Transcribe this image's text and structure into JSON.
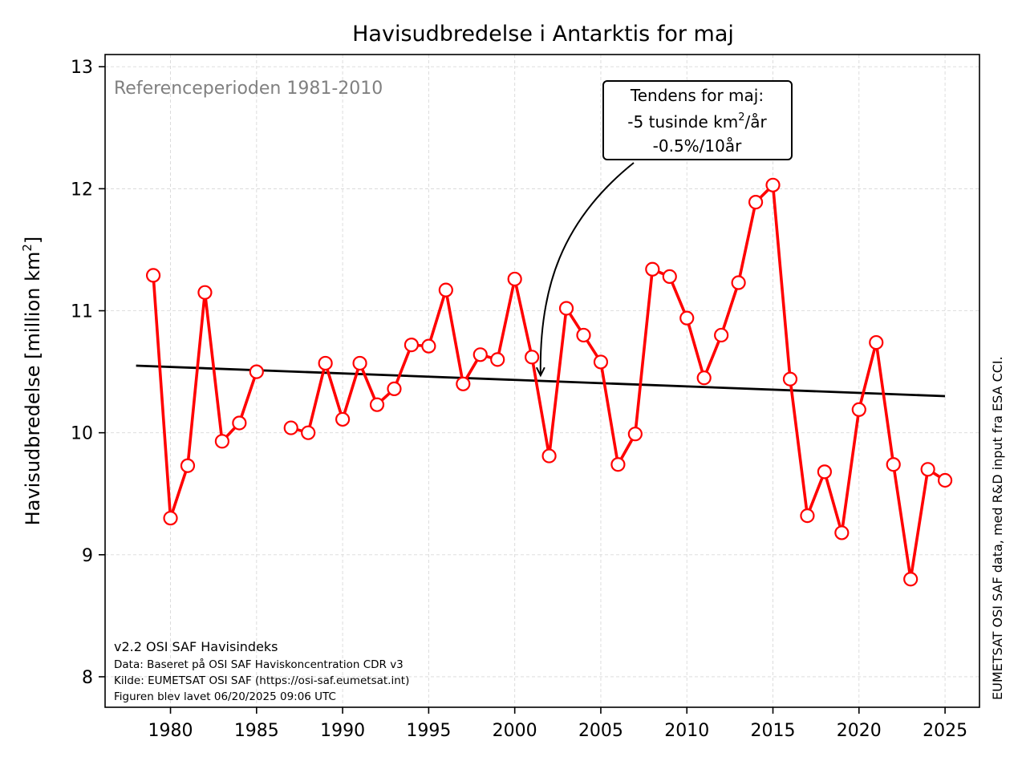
{
  "chart_data": {
    "type": "line",
    "title": "Havisudbredelse i Antarktis for maj",
    "ylabel_main": "Havisudbredelse [million km",
    "ylabel_sup": "2",
    "ylabel_end": "]",
    "xlim": [
      1976.2,
      2027
    ],
    "ylim": [
      7.75,
      13.1
    ],
    "xticks": [
      1980,
      1985,
      1990,
      1995,
      2000,
      2005,
      2010,
      2015,
      2020,
      2025
    ],
    "yticks": [
      8,
      9,
      10,
      11,
      12,
      13
    ],
    "grid": true,
    "colors": {
      "series": "#ff0000",
      "trend": "#000000",
      "reference": "#808080"
    },
    "series": [
      {
        "x": [
          1979,
          1980,
          1981,
          1982,
          1983,
          1984,
          1985,
          1986,
          1987,
          1988,
          1989,
          1990,
          1991,
          1992,
          1993,
          1994,
          1995,
          1996,
          1997,
          1998,
          1999,
          2000,
          2001,
          2002,
          2003,
          2004,
          2005,
          2006,
          2007,
          2008,
          2009,
          2010,
          2011,
          2012,
          2013,
          2014,
          2015,
          2016,
          2017,
          2018,
          2019,
          2020,
          2021,
          2022,
          2023,
          2024,
          2025
        ],
        "values": [
          11.29,
          9.3,
          9.73,
          11.15,
          9.93,
          10.08,
          10.5,
          null,
          10.04,
          10.0,
          10.57,
          10.11,
          10.57,
          10.23,
          10.36,
          10.72,
          10.71,
          11.17,
          10.4,
          10.64,
          10.6,
          11.26,
          10.62,
          9.81,
          11.02,
          10.8,
          10.58,
          9.74,
          9.99,
          11.34,
          11.28,
          10.94,
          10.45,
          10.8,
          11.23,
          11.89,
          12.03,
          10.44,
          9.32,
          9.68,
          9.18,
          10.19,
          10.74,
          9.74,
          8.8,
          9.7,
          9.61
        ]
      }
    ],
    "trend": {
      "x": [
        1978,
        2025
      ],
      "y": [
        10.55,
        10.3
      ]
    },
    "reference_text": "Referenceperioden 1981-2010",
    "annotation": {
      "line1": "Tendens for maj:",
      "line2_pre": "-5 tusinde km",
      "line2_sup": "2",
      "line2_post": "/år",
      "line3": "-0.5%/10år",
      "arrow_target": [
        2001.5,
        10.47
      ]
    },
    "footer": {
      "line1": "v2.2 OSI SAF Havisindeks",
      "line2": "Data: Baseret på OSI SAF Haviskoncentration CDR v3",
      "line3": "Kilde: EUMETSAT OSI SAF (https://osi-saf.eumetsat.int)",
      "line4": "Figuren blev lavet 06/20/2025 09:06 UTC"
    },
    "side_credit": "EUMETSAT OSI SAF data, med R&D input fra ESA CCI."
  }
}
